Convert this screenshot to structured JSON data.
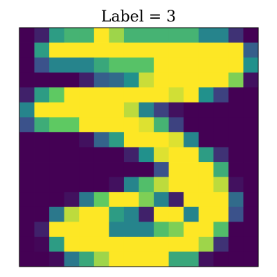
{
  "chart_data": {
    "type": "heatmap",
    "title": "Label = 3",
    "xlabel": "",
    "ylabel": "",
    "rows": 16,
    "cols": 16,
    "colormap": "viridis",
    "value_range": [
      0,
      1
    ],
    "ticks": "hidden",
    "grid": false,
    "values": [
      [
        0.0,
        0.1,
        0.55,
        0.65,
        0.65,
        1.0,
        0.85,
        0.65,
        0.65,
        0.65,
        0.65,
        0.65,
        0.45,
        0.45,
        0.15,
        0.0
      ],
      [
        0.0,
        0.55,
        1.0,
        1.0,
        1.0,
        1.0,
        1.0,
        1.0,
        1.0,
        1.0,
        1.0,
        1.0,
        1.0,
        1.0,
        1.0,
        0.3
      ],
      [
        0.0,
        0.25,
        0.45,
        0.45,
        0.45,
        0.6,
        0.72,
        0.72,
        0.72,
        1.0,
        1.0,
        1.0,
        1.0,
        1.0,
        1.0,
        0.5
      ],
      [
        0.0,
        0.0,
        0.0,
        0.0,
        0.1,
        0.3,
        0.35,
        0.5,
        0.92,
        1.0,
        1.0,
        1.0,
        1.0,
        1.0,
        0.8,
        0.05
      ],
      [
        0.1,
        0.55,
        0.75,
        1.0,
        1.0,
        1.0,
        1.0,
        1.0,
        1.0,
        1.0,
        0.93,
        1.0,
        0.5,
        0.2,
        0.0,
        0.0
      ],
      [
        0.45,
        1.0,
        1.0,
        1.0,
        1.0,
        1.0,
        1.0,
        0.9,
        0.45,
        0.2,
        0.05,
        0.0,
        0.0,
        0.0,
        0.0,
        0.0
      ],
      [
        0.25,
        0.62,
        0.75,
        0.75,
        1.0,
        1.0,
        1.0,
        1.0,
        0.95,
        0.65,
        0.2,
        0.0,
        0.0,
        0.0,
        0.0,
        0.0
      ],
      [
        0.0,
        0.0,
        0.0,
        0.0,
        0.05,
        0.32,
        0.55,
        1.0,
        1.0,
        1.0,
        0.95,
        0.45,
        0.0,
        0.0,
        0.0,
        0.0
      ],
      [
        0.0,
        0.0,
        0.0,
        0.0,
        0.0,
        0.0,
        0.0,
        0.1,
        0.5,
        0.95,
        1.0,
        1.0,
        0.55,
        0.15,
        0.0,
        0.0
      ],
      [
        0.0,
        0.0,
        0.0,
        0.0,
        0.0,
        0.0,
        0.0,
        0.0,
        0.0,
        0.25,
        1.0,
        1.0,
        1.0,
        0.62,
        0.0,
        0.0
      ],
      [
        0.0,
        0.0,
        0.0,
        0.0,
        0.0,
        0.0,
        0.05,
        0.45,
        0.7,
        0.9,
        1.0,
        1.0,
        1.0,
        0.9,
        0.05,
        0.0
      ],
      [
        0.0,
        0.0,
        0.0,
        0.05,
        0.4,
        0.75,
        1.0,
        1.0,
        0.8,
        0.45,
        0.1,
        1.0,
        1.0,
        1.0,
        0.35,
        0.0
      ],
      [
        0.0,
        0.0,
        0.4,
        0.9,
        1.0,
        1.0,
        0.55,
        0.45,
        0.1,
        1.0,
        1.0,
        0.45,
        1.0,
        1.0,
        0.25,
        0.0
      ],
      [
        0.0,
        0.1,
        1.0,
        1.0,
        1.0,
        1.0,
        0.45,
        0.45,
        0.45,
        0.7,
        0.8,
        1.0,
        1.0,
        0.7,
        0.0,
        0.0
      ],
      [
        0.0,
        0.02,
        0.55,
        1.0,
        1.0,
        1.0,
        1.0,
        1.0,
        1.0,
        1.0,
        1.0,
        1.0,
        0.85,
        0.15,
        0.0,
        0.0
      ],
      [
        0.0,
        0.0,
        0.03,
        0.4,
        0.6,
        0.85,
        1.0,
        1.0,
        1.0,
        1.0,
        0.6,
        0.6,
        0.05,
        0.0,
        0.0,
        0.0
      ]
    ]
  }
}
